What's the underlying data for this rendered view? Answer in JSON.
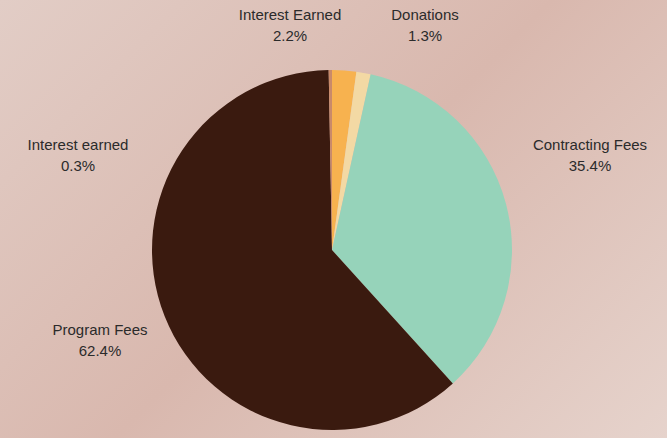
{
  "chart_data": {
    "type": "pie",
    "categories": [
      "Interest Earned",
      "Donations",
      "Contracting Fees",
      "Program Fees",
      "Interest earned"
    ],
    "values": [
      2.2,
      1.3,
      35.4,
      62.4,
      0.3
    ],
    "value_labels": [
      "2.2%",
      "1.3%",
      "35.4%",
      "62.4%",
      "0.3%"
    ],
    "colors": [
      "#f7b24f",
      "#f3d9a4",
      "#96d3ba",
      "#3a1a0f",
      "#c98a6a"
    ],
    "data_labels": true
  }
}
